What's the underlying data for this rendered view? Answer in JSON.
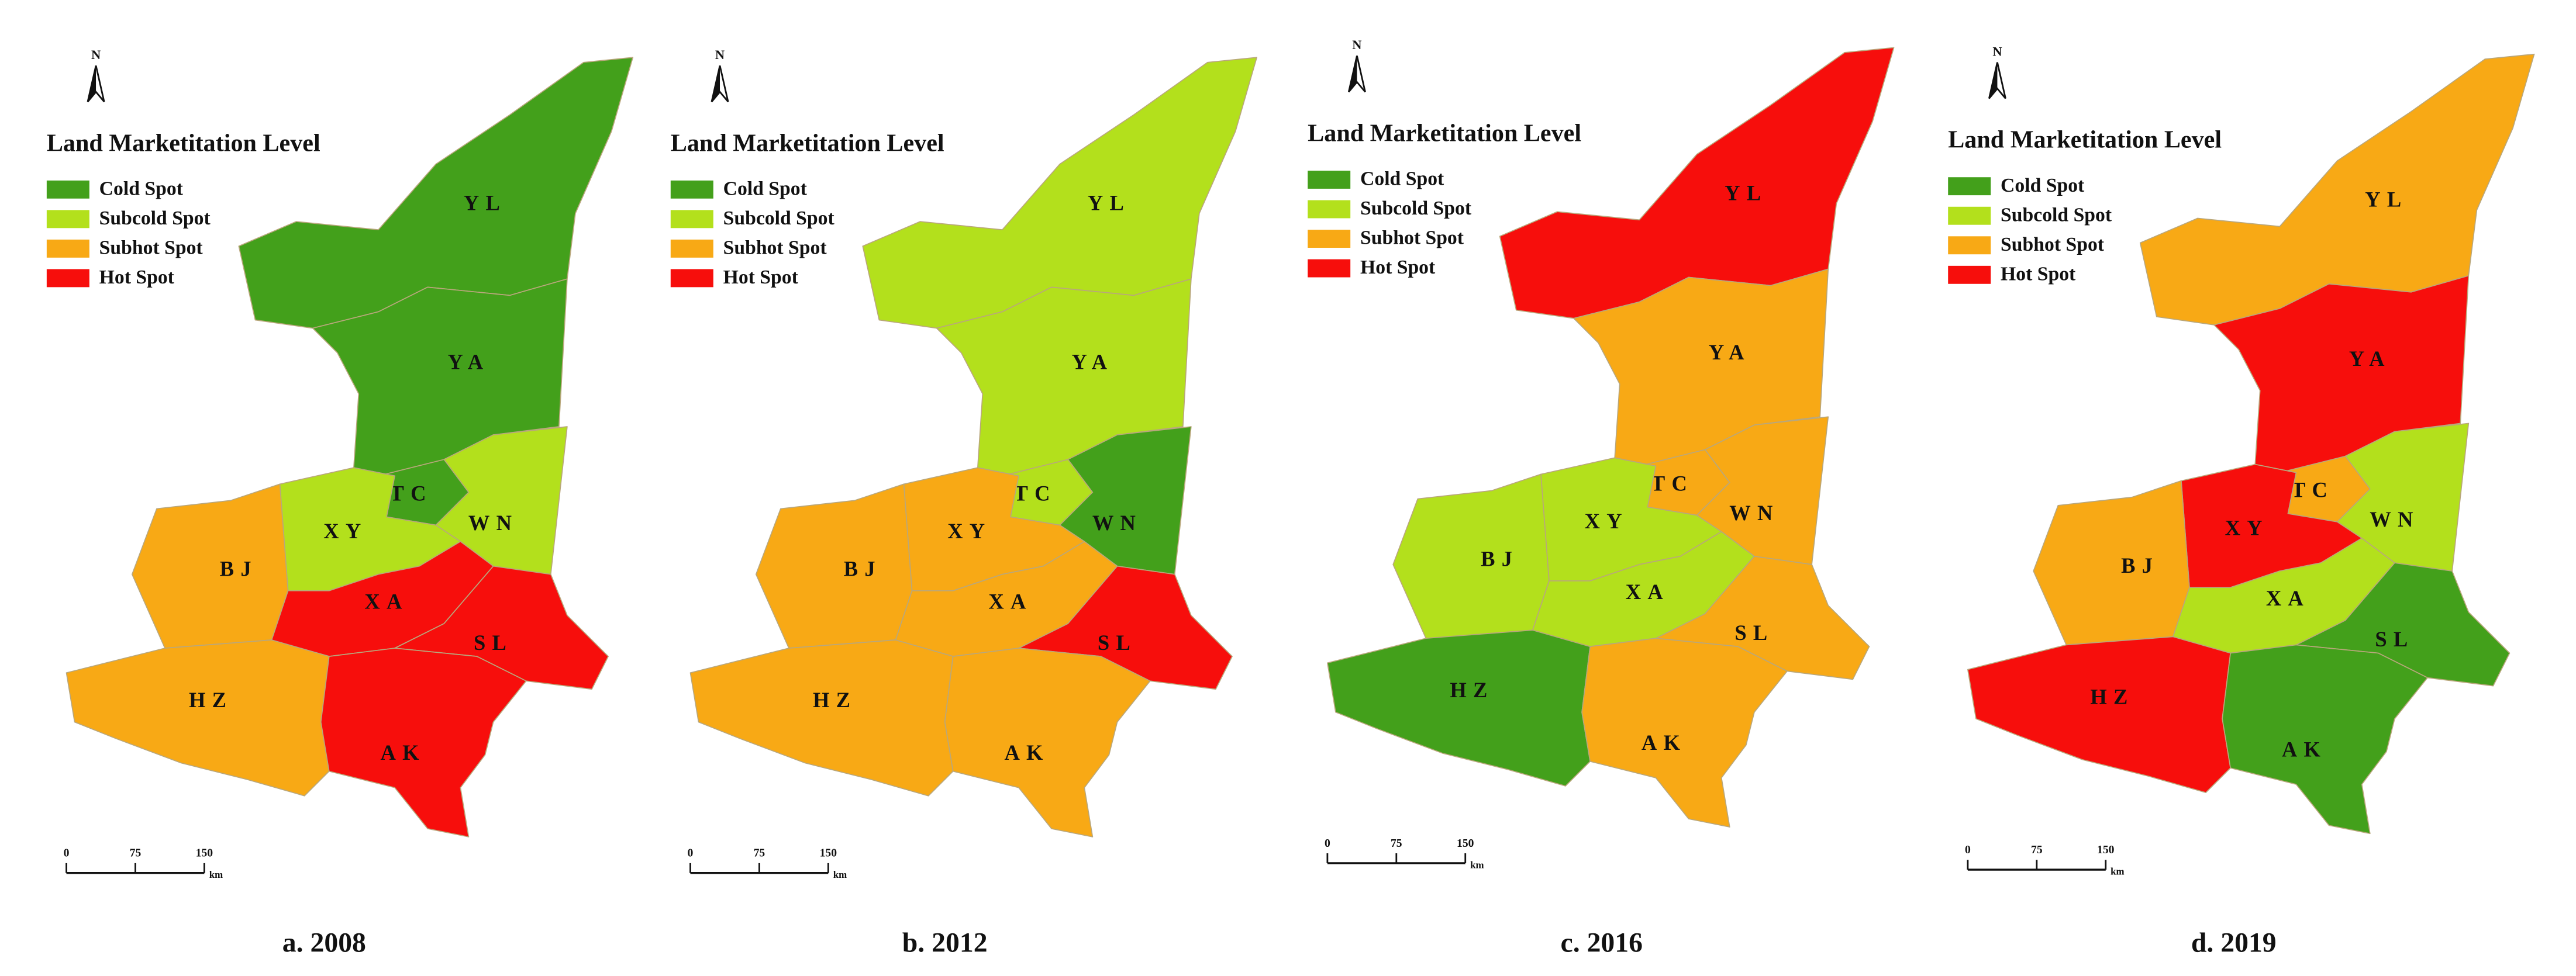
{
  "north": "N",
  "legend": {
    "title": "Land Marketitation Level",
    "items": [
      {
        "label": "Cold Spot",
        "color": "#43a01b"
      },
      {
        "label": "Subcold Spot",
        "color": "#b3e01c"
      },
      {
        "label": "Subhot Spot",
        "color": "#f8a915"
      },
      {
        "label": "Hot Spot",
        "color": "#f70e0c"
      }
    ]
  },
  "scale": {
    "ticks": [
      0,
      75,
      150
    ],
    "unit": "km"
  },
  "panels": [
    {
      "caption": "a. 2008",
      "regions": [
        {
          "label": "YL",
          "color": "#43a01b"
        },
        {
          "label": "YA",
          "color": "#43a01b"
        },
        {
          "label": "TC",
          "color": "#43a01b"
        },
        {
          "label": "WN",
          "color": "#b3e01c"
        },
        {
          "label": "XY",
          "color": "#b3e01c"
        },
        {
          "label": "BJ",
          "color": "#f8a915"
        },
        {
          "label": "XA",
          "color": "#f70e0c"
        },
        {
          "label": "SL",
          "color": "#f70e0c"
        },
        {
          "label": "HZ",
          "color": "#f8a915"
        },
        {
          "label": "AK",
          "color": "#f70e0c"
        }
      ]
    },
    {
      "caption": "b. 2012",
      "regions": [
        {
          "label": "YL",
          "color": "#b3e01c"
        },
        {
          "label": "YA",
          "color": "#b3e01c"
        },
        {
          "label": "TC",
          "color": "#b3e01c"
        },
        {
          "label": "WN",
          "color": "#43a01b"
        },
        {
          "label": "XY",
          "color": "#f8a915"
        },
        {
          "label": "BJ",
          "color": "#f8a915"
        },
        {
          "label": "XA",
          "color": "#f8a915"
        },
        {
          "label": "SL",
          "color": "#f70e0c"
        },
        {
          "label": "HZ",
          "color": "#f8a915"
        },
        {
          "label": "AK",
          "color": "#f8a915"
        }
      ]
    },
    {
      "caption": "c. 2016",
      "regions": [
        {
          "label": "YL",
          "color": "#f70e0c"
        },
        {
          "label": "YA",
          "color": "#f8a915"
        },
        {
          "label": "TC",
          "color": "#f8a915"
        },
        {
          "label": "WN",
          "color": "#f8a915"
        },
        {
          "label": "XY",
          "color": "#b3e01c"
        },
        {
          "label": "BJ",
          "color": "#b3e01c"
        },
        {
          "label": "XA",
          "color": "#b3e01c"
        },
        {
          "label": "SL",
          "color": "#f8a915"
        },
        {
          "label": "HZ",
          "color": "#43a01b"
        },
        {
          "label": "AK",
          "color": "#f8a915"
        }
      ]
    },
    {
      "caption": "d. 2019",
      "regions": [
        {
          "label": "YL",
          "color": "#f8a915"
        },
        {
          "label": "YA",
          "color": "#f70e0c"
        },
        {
          "label": "TC",
          "color": "#f8a915"
        },
        {
          "label": "WN",
          "color": "#b3e01c"
        },
        {
          "label": "XY",
          "color": "#f70e0c"
        },
        {
          "label": "BJ",
          "color": "#f8a915"
        },
        {
          "label": "XA",
          "color": "#b3e01c"
        },
        {
          "label": "SL",
          "color": "#43a01b"
        },
        {
          "label": "HZ",
          "color": "#f70e0c"
        },
        {
          "label": "AK",
          "color": "#43a01b"
        }
      ]
    }
  ]
}
